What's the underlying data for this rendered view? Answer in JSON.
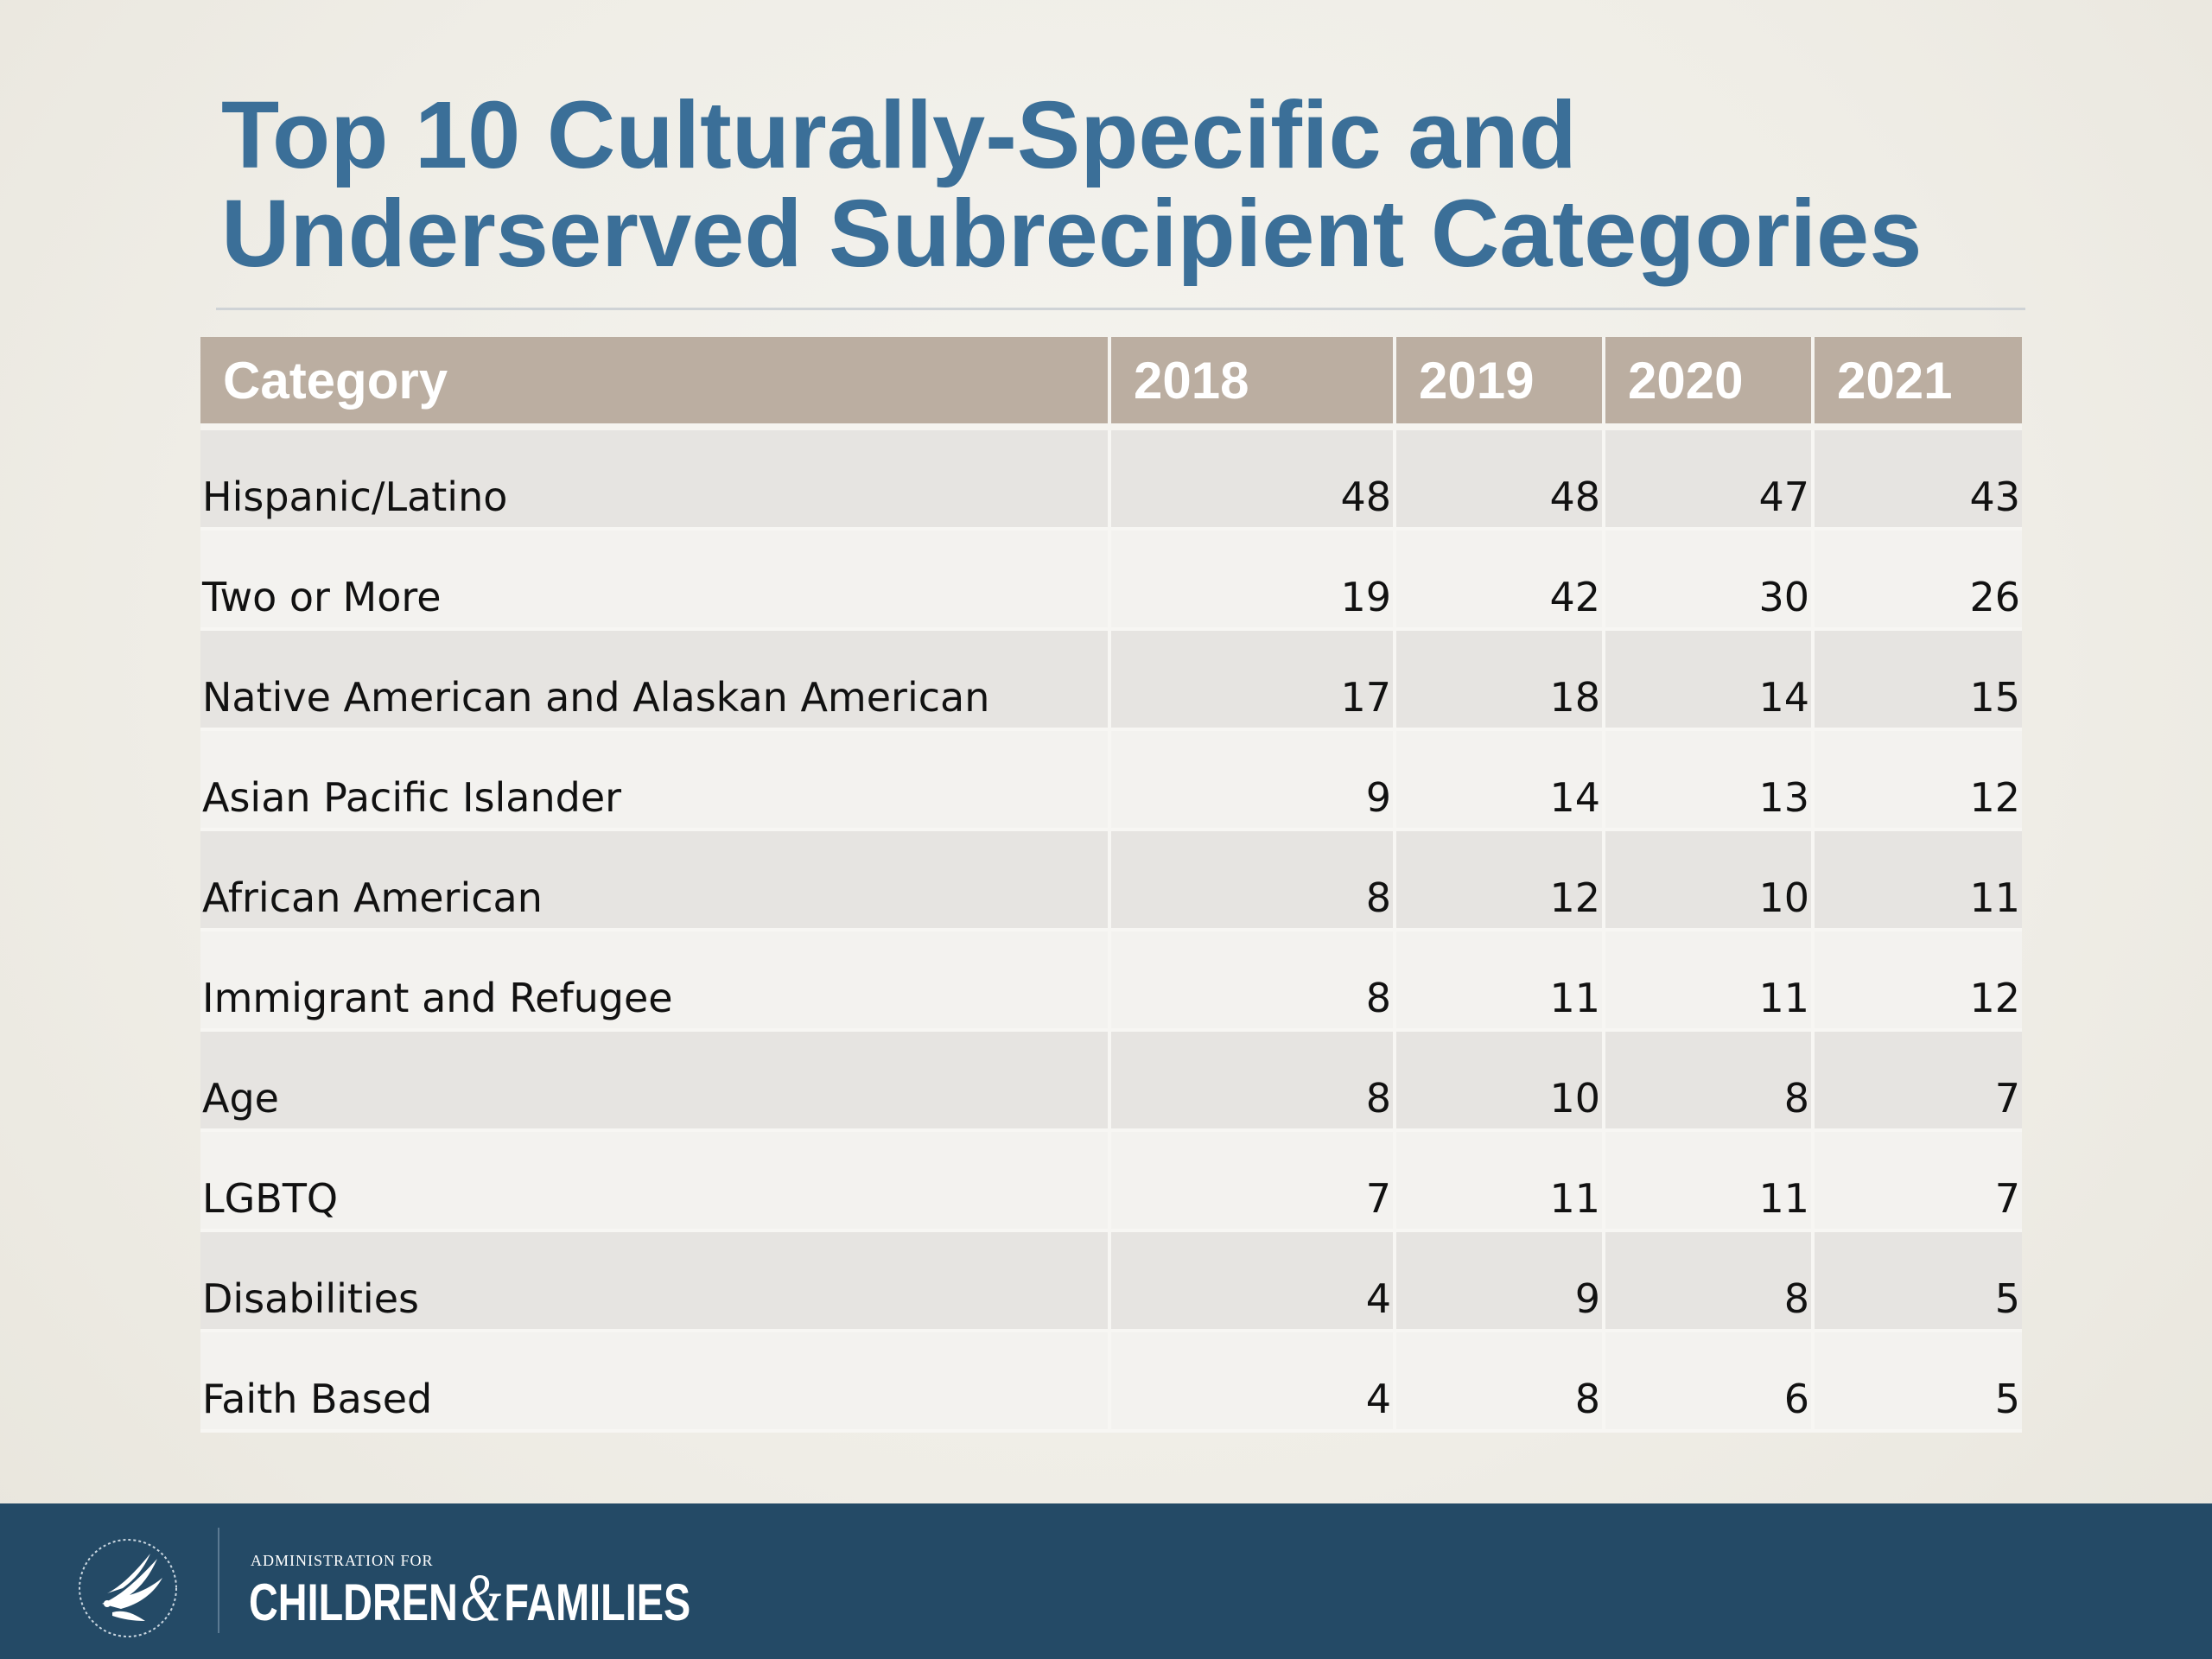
{
  "title": {
    "line1": "Top 10 Culturally-Specific and",
    "line2": "Underserved Subrecipient Categories"
  },
  "table": {
    "headers": [
      "Category",
      "2018",
      "2019",
      "2020",
      "2021"
    ],
    "rows": [
      [
        "Hispanic/Latino",
        "48",
        "48",
        "47",
        "43"
      ],
      [
        "Two or More",
        "19",
        "42",
        "30",
        "26"
      ],
      [
        "Native American and Alaskan American",
        "17",
        "18",
        "14",
        "15"
      ],
      [
        "Asian Pacific Islander",
        "9",
        "14",
        "13",
        "12"
      ],
      [
        "African American",
        "8",
        "12",
        "10",
        "11"
      ],
      [
        "Immigrant and Refugee",
        "8",
        "11",
        "11",
        "12"
      ],
      [
        "Age",
        "8",
        "10",
        "8",
        "7"
      ],
      [
        "LGBTQ",
        "7",
        "11",
        "11",
        "7"
      ],
      [
        "Disabilities",
        "4",
        "9",
        "8",
        "5"
      ],
      [
        "Faith Based",
        "4",
        "8",
        "6",
        "5"
      ]
    ]
  },
  "footer": {
    "logo_small": "ADMINISTRATION FOR",
    "logo_children": "CHILDREN",
    "logo_amp": "&",
    "logo_families": "FAMILIES",
    "seal_icon": "hhs-eagle-seal-icon",
    "footer_color": "#244a66"
  },
  "colors": {
    "title": "#3b6f98",
    "header_bg": "#bbaea1",
    "row_odd": "#e6e4e1",
    "row_even": "#f3f2ef"
  }
}
